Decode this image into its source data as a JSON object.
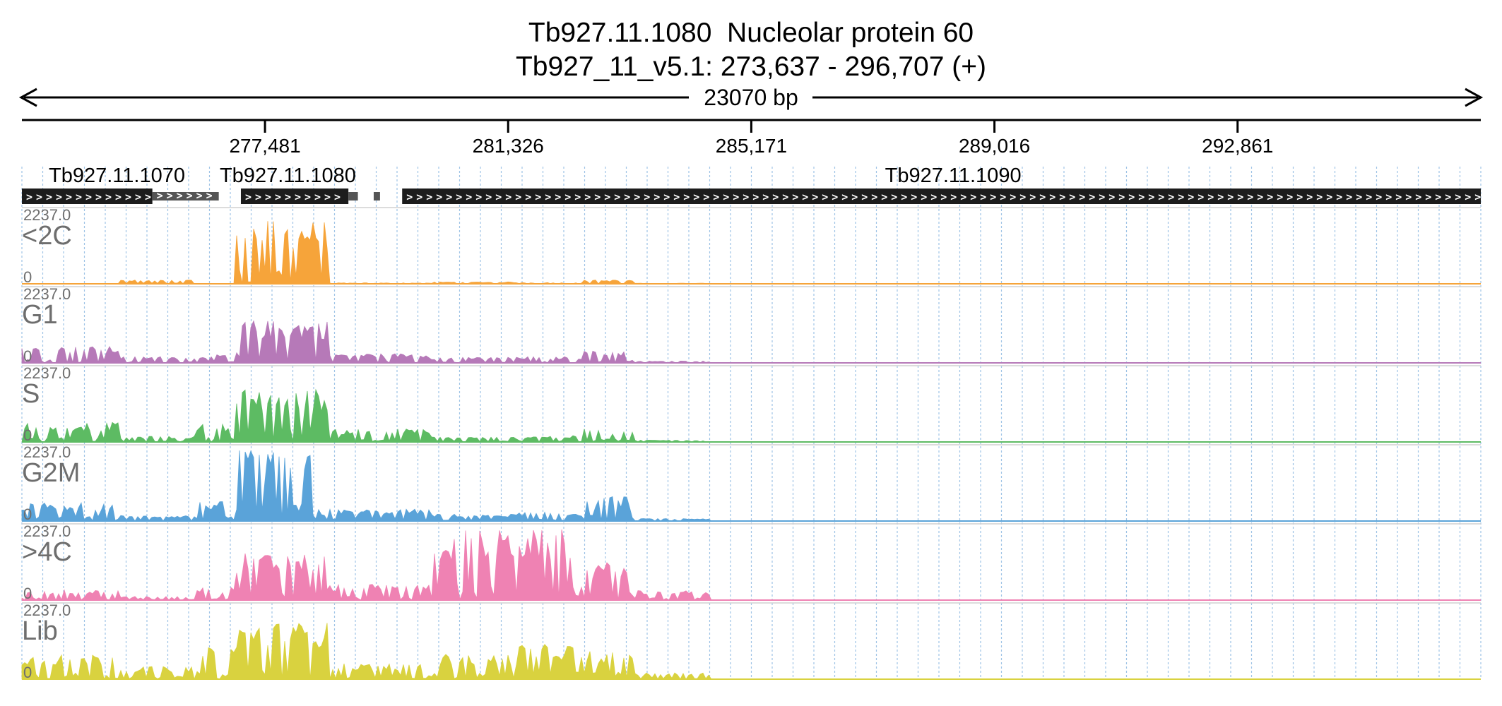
{
  "header": {
    "title_line1": "Tb927.11.1080  Nucleolar protein 60",
    "title_line2": "Tb927_11_v5.1: 273,637 - 296,707 (+)",
    "span_label": "23070 bp"
  },
  "axis": {
    "tick_labels": [
      "277,481",
      "281,326",
      "285,171",
      "289,016",
      "292,861"
    ]
  },
  "genes": [
    {
      "name": "Tb927.11.1070",
      "start": 273637,
      "end": 275700,
      "style": "solid"
    },
    {
      "name": "",
      "start": 275700,
      "end": 276750,
      "style": "light"
    },
    {
      "name": "Tb927.11.1080",
      "start": 277100,
      "end": 278800,
      "style": "solid"
    },
    {
      "name": "",
      "start": 278800,
      "end": 278950,
      "style": "light"
    },
    {
      "name": "",
      "start": 279200,
      "end": 279300,
      "style": "light"
    },
    {
      "name": "Tb927.11.1090",
      "start": 279650,
      "end": 296707,
      "style": "solid"
    }
  ],
  "chart_data": {
    "type": "area",
    "x_unit": "genomic position (bp)",
    "xlim": [
      273637,
      296707
    ],
    "tick_positions": [
      277481,
      281326,
      285171,
      289016,
      292861
    ],
    "ylim": [
      0,
      2237.0
    ],
    "scale_max_label": "2237.0",
    "scale_min_label": "0",
    "grid": true,
    "bin_starts": [
      273637,
      275200,
      276400,
      277000,
      278500,
      280100,
      281500,
      282500,
      283300
    ],
    "series": [
      {
        "name": "<2C",
        "color": "#f6a43a",
        "values": [
          0,
          120,
          0,
          2000,
          30,
          60,
          40,
          120,
          20
        ]
      },
      {
        "name": "G1",
        "color": "#b679b8",
        "values": [
          520,
          200,
          260,
          1350,
          300,
          180,
          200,
          380,
          60
        ]
      },
      {
        "name": "S",
        "color": "#5dbb63",
        "values": [
          620,
          180,
          600,
          1700,
          420,
          160,
          200,
          420,
          60
        ]
      },
      {
        "name": "G2M",
        "color": "#5aa3d9",
        "values": [
          580,
          180,
          620,
          2237,
          380,
          220,
          280,
          780,
          80
        ]
      },
      {
        "name": ">4C",
        "color": "#ef82b3",
        "values": [
          320,
          120,
          420,
          1500,
          500,
          2237,
          2237,
          1200,
          300
        ]
      },
      {
        "name": "Lib",
        "color": "#d9d23f",
        "values": [
          800,
          400,
          1000,
          1800,
          500,
          800,
          1100,
          900,
          200
        ]
      }
    ]
  }
}
